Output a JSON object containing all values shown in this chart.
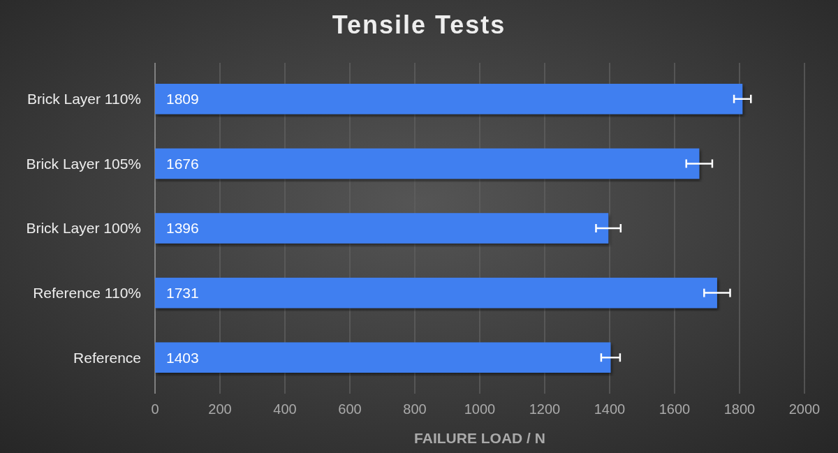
{
  "chart_data": {
    "type": "bar",
    "orientation": "horizontal",
    "title": "Tensile Tests",
    "xlabel": "FAILURE LOAD / N",
    "categories": [
      "Brick Layer 110%",
      "Brick Layer 105%",
      "Brick Layer 100%",
      "Reference 110%",
      "Reference"
    ],
    "values": [
      1809,
      1676,
      1396,
      1731,
      1403
    ],
    "errors": [
      26,
      40,
      38,
      40,
      29
    ],
    "color": "#3f7ff0",
    "data_labels": true,
    "xlim": [
      0,
      2000
    ],
    "xticks": [
      0,
      200,
      400,
      600,
      800,
      1000,
      1200,
      1400,
      1600,
      1800,
      2000
    ],
    "grid": "x"
  }
}
